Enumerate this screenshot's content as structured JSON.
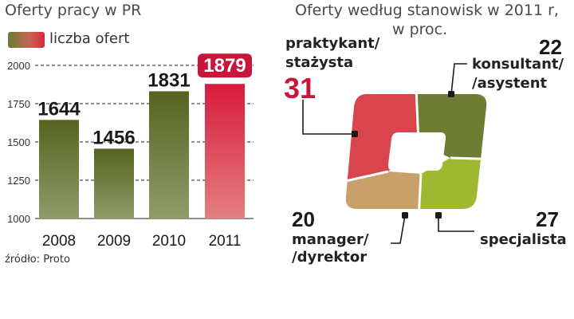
{
  "bar_chart_title": "Oferty pracy w PR",
  "legend_label": "liczba ofert",
  "source": "źródło: Proto",
  "donut_title_line1": "Oferty według stanowisk w 2011 r,",
  "donut_title_line2": "w proc.",
  "colors": {
    "bar_green_top": "#55631f",
    "bar_green_bottom": "#8f9c6a",
    "bar_red_top": "#d91a3c",
    "bar_red_bottom": "#e38080",
    "seg_red": "#d8454c",
    "seg_olive": "#6d7d33",
    "seg_lime": "#9fb832",
    "seg_tan": "#c9a06a",
    "highlight_label": "#c8163a"
  },
  "chart_data": [
    {
      "type": "bar",
      "title": "Oferty pracy w PR",
      "categories": [
        "2008",
        "2009",
        "2010",
        "2011"
      ],
      "values": [
        1644,
        1456,
        1831,
        1879
      ],
      "value_labels": [
        "1644",
        "1456",
        "1831",
        "1879"
      ],
      "legend": [
        "liczba ofert"
      ],
      "y_ticks": [
        "1000",
        "1250",
        "1500",
        "1750",
        "2000"
      ],
      "ylim": [
        1000,
        2000
      ],
      "grid": true,
      "highlight_category": "2011"
    },
    {
      "type": "pie",
      "title": "Oferty według stanowisk w 2011 r, w proc.",
      "segments": [
        {
          "line1": "praktykant/",
          "line2": "stażysta",
          "value": 31,
          "value_label": "31"
        },
        {
          "line1": "konsultant/",
          "line2": "/asystent",
          "value": 22,
          "value_label": "22"
        },
        {
          "line1": "specjalista",
          "line2": "",
          "value": 27,
          "value_label": "27"
        },
        {
          "line1": "manager/",
          "line2": "/dyrektor",
          "value": 20,
          "value_label": "20"
        }
      ]
    }
  ]
}
